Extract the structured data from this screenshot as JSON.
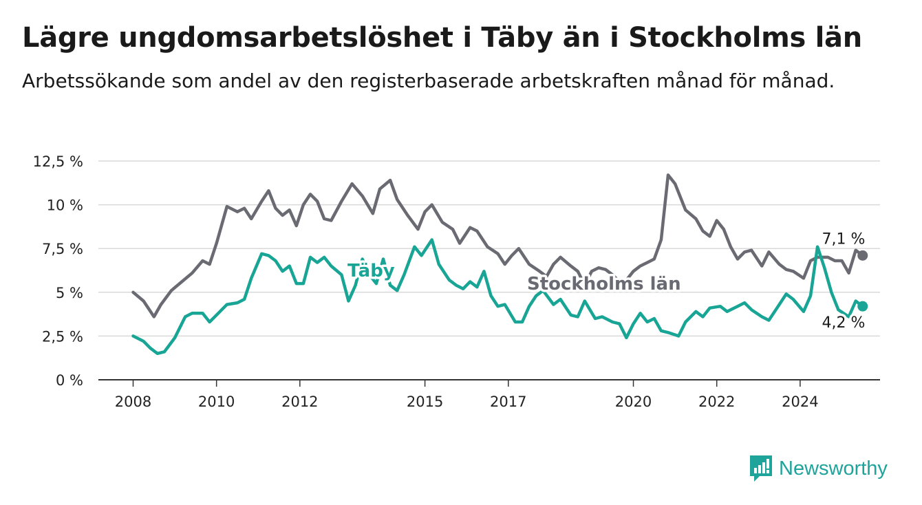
{
  "title": "Lägre ungdomsarbetslöshet i Täby än i Stockholms län",
  "subtitle": "Arbetssökande som andel av den registerbaserade arbetskraften månad för månad.",
  "brand": {
    "name": "Newsworthy"
  },
  "colors": {
    "taby": "#18a595",
    "stockholm": "#6a6a72",
    "grid": "#d9d9d9",
    "axis": "#333333"
  },
  "chart_data": {
    "type": "line",
    "title": "Lägre ungdomsarbetslöshet i Täby än i Stockholms län",
    "xlabel": "",
    "ylabel": "",
    "x_ticks": [
      "2008",
      "2010",
      "2012",
      "2015",
      "2017",
      "2020",
      "2022",
      "2024"
    ],
    "y_ticks": [
      "0 %",
      "2,5 %",
      "5 %",
      "7,5 %",
      "10 %",
      "12,5 %"
    ],
    "ylim": [
      0,
      12.5
    ],
    "xlim": [
      "2007-03",
      "2025-12"
    ],
    "grid": true,
    "series": [
      {
        "name": "Täby",
        "end_label": "4,2 %",
        "points": [
          [
            "2008-01",
            2.5
          ],
          [
            "2008-04",
            2.2
          ],
          [
            "2008-06",
            1.8
          ],
          [
            "2008-08",
            1.5
          ],
          [
            "2008-10",
            1.6
          ],
          [
            "2009-01",
            2.4
          ],
          [
            "2009-04",
            3.6
          ],
          [
            "2009-06",
            3.8
          ],
          [
            "2009-09",
            3.8
          ],
          [
            "2009-11",
            3.3
          ],
          [
            "2010-02",
            3.9
          ],
          [
            "2010-04",
            4.3
          ],
          [
            "2010-07",
            4.4
          ],
          [
            "2010-09",
            4.6
          ],
          [
            "2010-11",
            5.8
          ],
          [
            "2011-02",
            7.2
          ],
          [
            "2011-04",
            7.1
          ],
          [
            "2011-06",
            6.8
          ],
          [
            "2011-08",
            6.2
          ],
          [
            "2011-10",
            6.5
          ],
          [
            "2011-12",
            5.5
          ],
          [
            "2012-02",
            5.5
          ],
          [
            "2012-04",
            7.0
          ],
          [
            "2012-06",
            6.7
          ],
          [
            "2012-08",
            7.0
          ],
          [
            "2012-10",
            6.5
          ],
          [
            "2013-01",
            6.0
          ],
          [
            "2013-03",
            4.5
          ],
          [
            "2013-05",
            5.4
          ],
          [
            "2013-07",
            6.9
          ],
          [
            "2013-09",
            6.0
          ],
          [
            "2013-11",
            5.5
          ],
          [
            "2014-01",
            6.9
          ],
          [
            "2014-03",
            5.4
          ],
          [
            "2014-05",
            5.1
          ],
          [
            "2014-07",
            6.0
          ],
          [
            "2014-10",
            7.6
          ],
          [
            "2014-12",
            7.1
          ],
          [
            "2015-03",
            8.0
          ],
          [
            "2015-05",
            6.6
          ],
          [
            "2015-08",
            5.7
          ],
          [
            "2015-10",
            5.4
          ],
          [
            "2015-12",
            5.2
          ],
          [
            "2016-02",
            5.6
          ],
          [
            "2016-04",
            5.3
          ],
          [
            "2016-06",
            6.2
          ],
          [
            "2016-08",
            4.8
          ],
          [
            "2016-10",
            4.2
          ],
          [
            "2016-12",
            4.3
          ],
          [
            "2017-03",
            3.3
          ],
          [
            "2017-05",
            3.3
          ],
          [
            "2017-07",
            4.2
          ],
          [
            "2017-09",
            4.8
          ],
          [
            "2017-11",
            5.1
          ],
          [
            "2018-02",
            4.3
          ],
          [
            "2018-04",
            4.6
          ],
          [
            "2018-07",
            3.7
          ],
          [
            "2018-09",
            3.6
          ],
          [
            "2018-11",
            4.5
          ],
          [
            "2019-02",
            3.5
          ],
          [
            "2019-04",
            3.6
          ],
          [
            "2019-07",
            3.3
          ],
          [
            "2019-09",
            3.2
          ],
          [
            "2019-11",
            2.4
          ],
          [
            "2020-01",
            3.2
          ],
          [
            "2020-03",
            3.8
          ],
          [
            "2020-05",
            3.3
          ],
          [
            "2020-07",
            3.5
          ],
          [
            "2020-09",
            2.8
          ],
          [
            "2020-11",
            2.7
          ],
          [
            "2021-02",
            2.5
          ],
          [
            "2021-04",
            3.3
          ],
          [
            "2021-07",
            3.9
          ],
          [
            "2021-09",
            3.6
          ],
          [
            "2021-11",
            4.1
          ],
          [
            "2022-02",
            4.2
          ],
          [
            "2022-04",
            3.9
          ],
          [
            "2022-07",
            4.2
          ],
          [
            "2022-09",
            4.4
          ],
          [
            "2022-11",
            4.0
          ],
          [
            "2023-02",
            3.6
          ],
          [
            "2023-04",
            3.4
          ],
          [
            "2023-07",
            4.3
          ],
          [
            "2023-09",
            4.9
          ],
          [
            "2023-11",
            4.6
          ],
          [
            "2024-02",
            3.9
          ],
          [
            "2024-04",
            4.8
          ],
          [
            "2024-06",
            7.6
          ],
          [
            "2024-08",
            6.4
          ],
          [
            "2024-10",
            5.0
          ],
          [
            "2024-12",
            4.0
          ],
          [
            "2025-03",
            3.6
          ],
          [
            "2025-05",
            4.5
          ],
          [
            "2025-07",
            4.2
          ]
        ]
      },
      {
        "name": "Stockholms län",
        "end_label": "7,1 %",
        "points": [
          [
            "2008-01",
            5.0
          ],
          [
            "2008-04",
            4.5
          ],
          [
            "2008-07",
            3.6
          ],
          [
            "2008-09",
            4.3
          ],
          [
            "2008-12",
            5.1
          ],
          [
            "2009-03",
            5.6
          ],
          [
            "2009-06",
            6.1
          ],
          [
            "2009-09",
            6.8
          ],
          [
            "2009-11",
            6.6
          ],
          [
            "2010-01",
            7.8
          ],
          [
            "2010-04",
            9.9
          ],
          [
            "2010-07",
            9.6
          ],
          [
            "2010-09",
            9.8
          ],
          [
            "2010-11",
            9.2
          ],
          [
            "2011-02",
            10.2
          ],
          [
            "2011-04",
            10.8
          ],
          [
            "2011-06",
            9.8
          ],
          [
            "2011-08",
            9.4
          ],
          [
            "2011-10",
            9.7
          ],
          [
            "2011-12",
            8.8
          ],
          [
            "2012-02",
            10.0
          ],
          [
            "2012-04",
            10.6
          ],
          [
            "2012-06",
            10.2
          ],
          [
            "2012-08",
            9.2
          ],
          [
            "2012-10",
            9.1
          ],
          [
            "2013-01",
            10.2
          ],
          [
            "2013-04",
            11.2
          ],
          [
            "2013-07",
            10.5
          ],
          [
            "2013-10",
            9.5
          ],
          [
            "2013-12",
            10.9
          ],
          [
            "2014-03",
            11.4
          ],
          [
            "2014-05",
            10.3
          ],
          [
            "2014-08",
            9.4
          ],
          [
            "2014-11",
            8.6
          ],
          [
            "2015-01",
            9.6
          ],
          [
            "2015-03",
            10.0
          ],
          [
            "2015-06",
            9.0
          ],
          [
            "2015-09",
            8.6
          ],
          [
            "2015-11",
            7.8
          ],
          [
            "2016-02",
            8.7
          ],
          [
            "2016-04",
            8.5
          ],
          [
            "2016-07",
            7.6
          ],
          [
            "2016-10",
            7.2
          ],
          [
            "2016-12",
            6.6
          ],
          [
            "2017-02",
            7.1
          ],
          [
            "2017-04",
            7.5
          ],
          [
            "2017-07",
            6.6
          ],
          [
            "2017-10",
            6.2
          ],
          [
            "2017-12",
            5.9
          ],
          [
            "2018-02",
            6.6
          ],
          [
            "2018-04",
            7.0
          ],
          [
            "2018-07",
            6.5
          ],
          [
            "2018-09",
            6.2
          ],
          [
            "2018-11",
            5.4
          ],
          [
            "2019-01",
            6.2
          ],
          [
            "2019-03",
            6.4
          ],
          [
            "2019-05",
            6.3
          ],
          [
            "2019-07",
            6.0
          ],
          [
            "2019-09",
            5.6
          ],
          [
            "2019-11",
            5.7
          ],
          [
            "2020-01",
            6.2
          ],
          [
            "2020-03",
            6.5
          ],
          [
            "2020-05",
            6.7
          ],
          [
            "2020-07",
            6.9
          ],
          [
            "2020-09",
            8.0
          ],
          [
            "2020-11",
            11.7
          ],
          [
            "2021-01",
            11.2
          ],
          [
            "2021-04",
            9.7
          ],
          [
            "2021-07",
            9.2
          ],
          [
            "2021-09",
            8.5
          ],
          [
            "2021-11",
            8.2
          ],
          [
            "2022-01",
            9.1
          ],
          [
            "2022-03",
            8.6
          ],
          [
            "2022-05",
            7.6
          ],
          [
            "2022-07",
            6.9
          ],
          [
            "2022-09",
            7.3
          ],
          [
            "2022-11",
            7.4
          ],
          [
            "2023-02",
            6.5
          ],
          [
            "2023-04",
            7.3
          ],
          [
            "2023-07",
            6.6
          ],
          [
            "2023-09",
            6.3
          ],
          [
            "2023-11",
            6.2
          ],
          [
            "2024-02",
            5.8
          ],
          [
            "2024-04",
            6.8
          ],
          [
            "2024-06",
            7.0
          ],
          [
            "2024-09",
            7.0
          ],
          [
            "2024-11",
            6.8
          ],
          [
            "2025-01",
            6.8
          ],
          [
            "2025-03",
            6.1
          ],
          [
            "2025-05",
            7.4
          ],
          [
            "2025-07",
            7.1
          ]
        ]
      }
    ]
  }
}
